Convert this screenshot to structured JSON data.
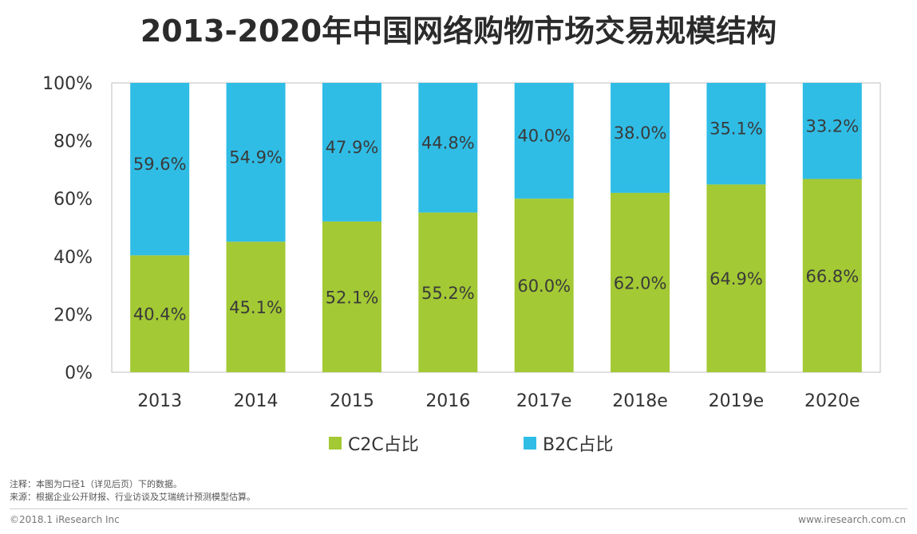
{
  "title": "2013-2020年中国网络购物市场交易规模结构",
  "chart_data": {
    "type": "bar",
    "stacked": true,
    "categories": [
      "2013",
      "2014",
      "2015",
      "2016",
      "2017e",
      "2018e",
      "2019e",
      "2020e"
    ],
    "series": [
      {
        "name": "C2C占比",
        "color": "#a3c934",
        "values": [
          40.4,
          45.1,
          52.1,
          55.2,
          60.0,
          62.0,
          64.9,
          66.8
        ],
        "labels": [
          "40.4%",
          "45.1%",
          "52.1%",
          "55.2%",
          "60.0%",
          "62.0%",
          "64.9%",
          "66.8%"
        ]
      },
      {
        "name": "B2C占比",
        "color": "#2fbde6",
        "values": [
          59.6,
          54.9,
          47.9,
          44.8,
          40.0,
          38.0,
          35.1,
          33.2
        ],
        "labels": [
          "59.6%",
          "54.9%",
          "47.9%",
          "44.8%",
          "40.0%",
          "38.0%",
          "35.1%",
          "33.2%"
        ]
      }
    ],
    "y_ticks": [
      "0%",
      "20%",
      "40%",
      "60%",
      "80%",
      "100%"
    ],
    "ylim": [
      0,
      100
    ],
    "xlabel": "",
    "ylabel": "",
    "legend_position": "bottom"
  },
  "notes": {
    "line1": "注释：本图为口径1（详见后页）下的数据。",
    "line2": "来源：根据企业公开财报、行业访谈及艾瑞统计预测模型估算。"
  },
  "footer": {
    "copyright": "©2018.1 iResearch Inc",
    "website": "www.iresearch.com.cn"
  }
}
